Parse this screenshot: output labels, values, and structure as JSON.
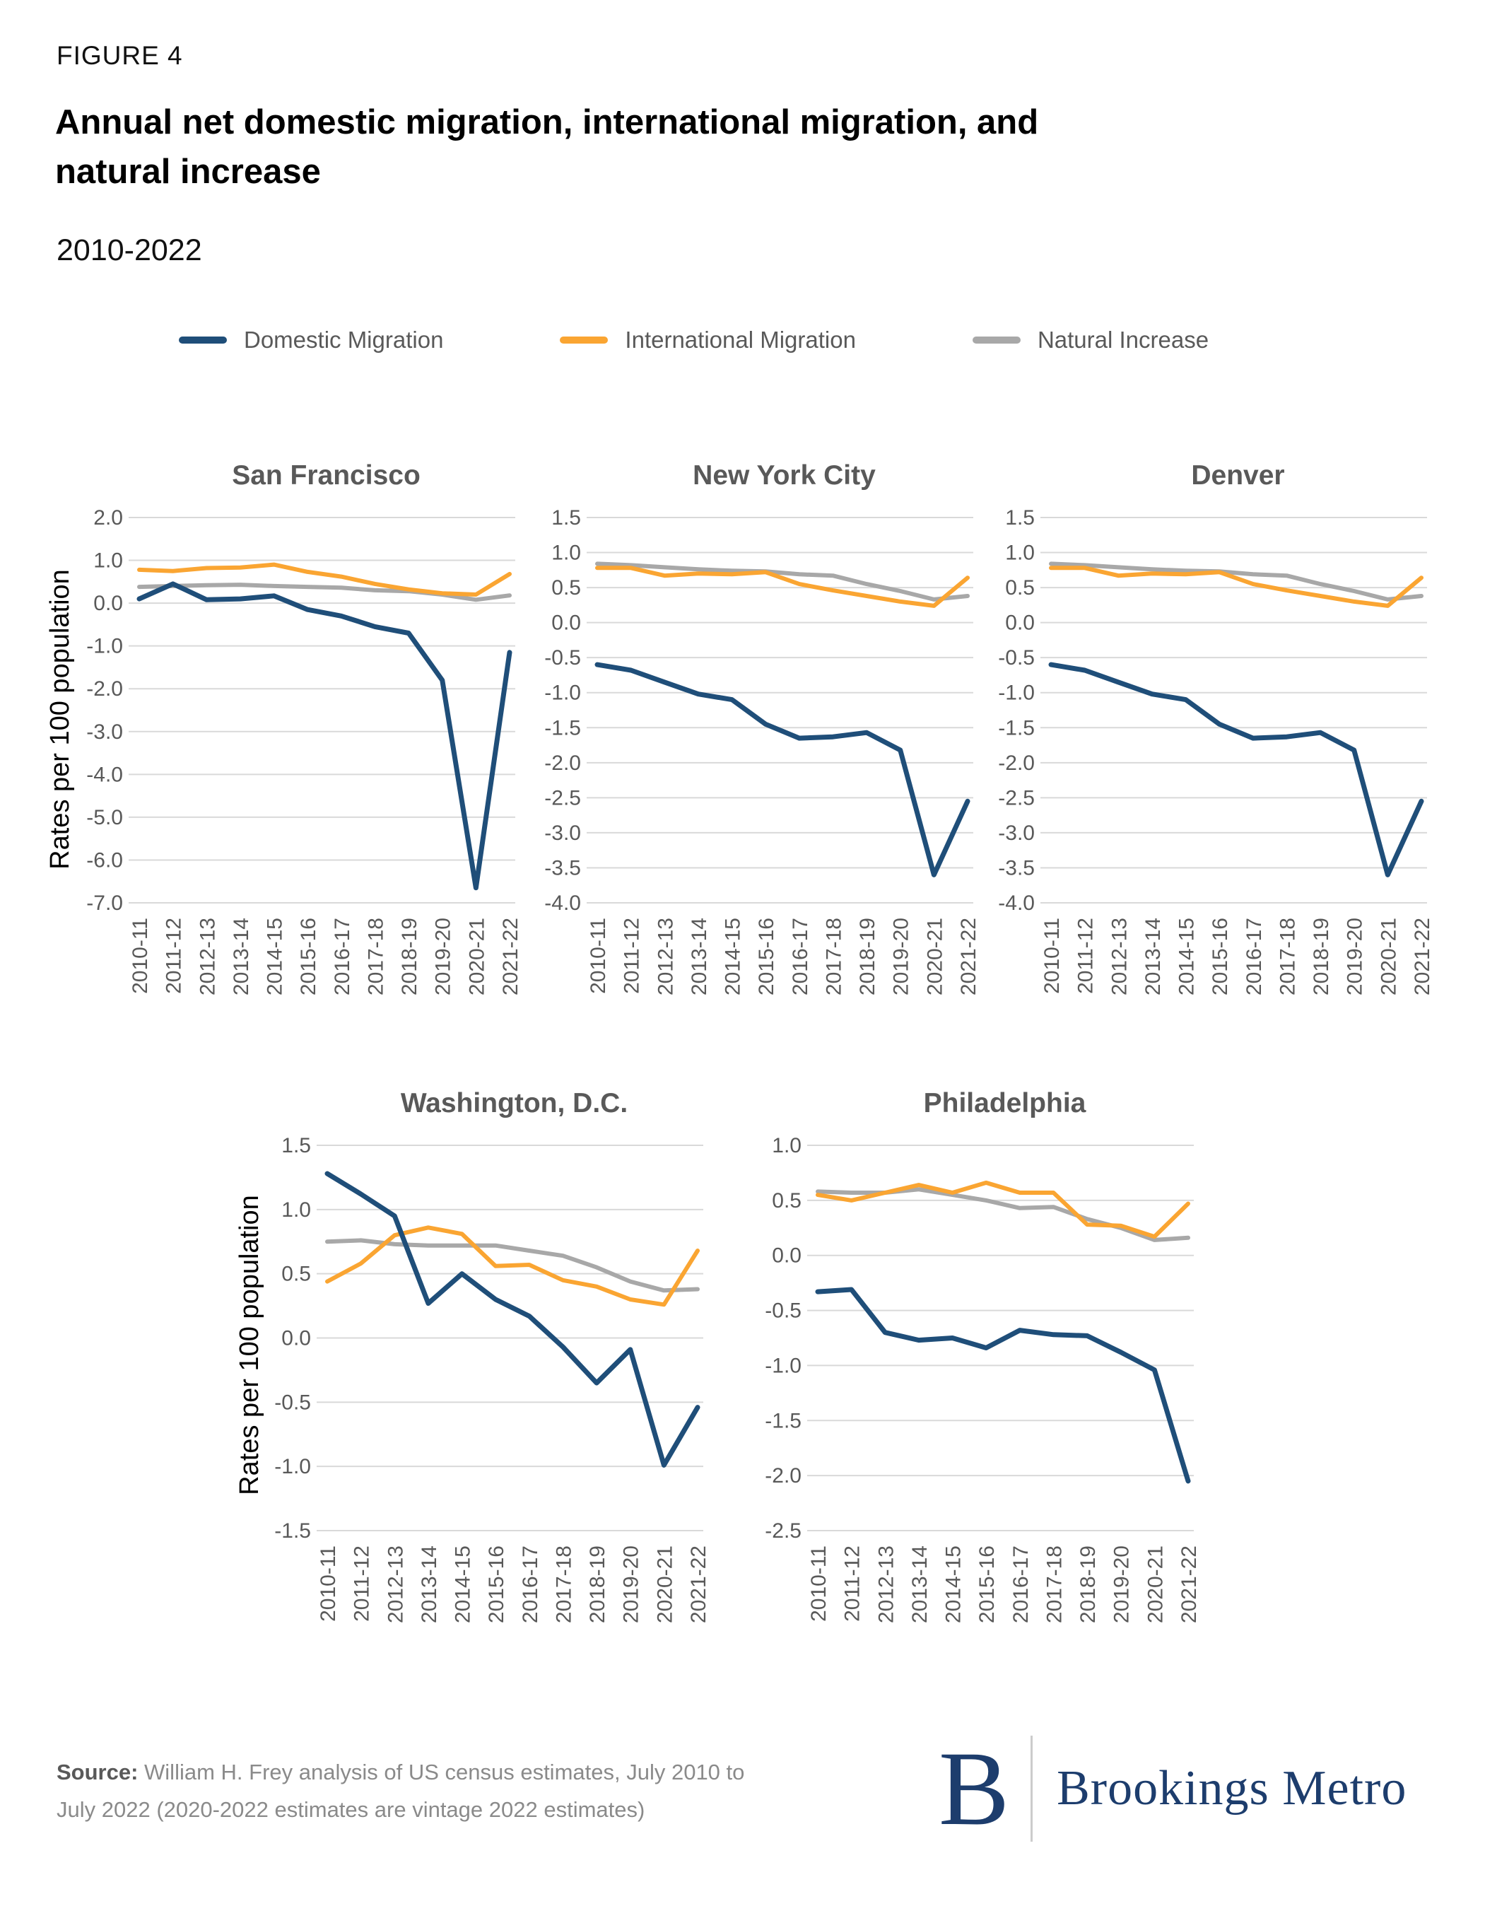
{
  "figure_label": "FIGURE 4",
  "title_lines": [
    "Annual net domestic migration, international migration, and",
    "natural increase"
  ],
  "subtitle": "2010-2022",
  "y_axis_label": "Rates per 100 population",
  "legend": [
    {
      "label": "Domestic Migration",
      "color": "#1F4E79"
    },
    {
      "label": "International Migration",
      "color": "#FAA532"
    },
    {
      "label": "Natural Increase",
      "color": "#A8A8A8"
    }
  ],
  "source": {
    "prefix": "Source:",
    "line1": " William H. Frey analysis of US census estimates, July 2010 to",
    "line2": "July 2022 (2020-2022 estimates are vintage 2022 estimates)"
  },
  "logo": {
    "letter": "B",
    "name": "Brookings Metro"
  },
  "chart_data": {
    "type": "line",
    "x": [
      "2010-11",
      "2011-12",
      "2012-13",
      "2013-14",
      "2014-15",
      "2015-16",
      "2016-17",
      "2017-18",
      "2018-19",
      "2019-20",
      "2020-21",
      "2021-22"
    ],
    "x_tick_rotation": 90,
    "grid": true,
    "legend_position": "top",
    "ylabel": "Rates per 100 population",
    "charts": [
      {
        "title": "San Francisco",
        "ylim": [
          -7.0,
          2.0
        ],
        "ytick_step": 1.0,
        "series": [
          {
            "name": "Domestic Migration",
            "values": [
              0.1,
              0.45,
              0.08,
              0.1,
              0.17,
              -0.15,
              -0.3,
              -0.55,
              -0.7,
              -1.8,
              -6.65,
              -1.15
            ]
          },
          {
            "name": "International Migration",
            "values": [
              0.78,
              0.75,
              0.82,
              0.83,
              0.9,
              0.73,
              0.62,
              0.45,
              0.32,
              0.23,
              0.2,
              0.68
            ]
          },
          {
            "name": "Natural Increase",
            "values": [
              0.38,
              0.4,
              0.42,
              0.43,
              0.4,
              0.38,
              0.36,
              0.3,
              0.28,
              0.2,
              0.08,
              0.18
            ]
          }
        ]
      },
      {
        "title": "New York City",
        "ylim": [
          -4.0,
          1.5
        ],
        "ytick_step": 0.5,
        "series": [
          {
            "name": "Domestic Migration",
            "values": [
              -0.6,
              -0.68,
              -0.85,
              -1.02,
              -1.1,
              -1.45,
              -1.65,
              -1.63,
              -1.57,
              -1.82,
              -3.6,
              -2.55
            ]
          },
          {
            "name": "International Migration",
            "values": [
              0.78,
              0.78,
              0.67,
              0.7,
              0.69,
              0.72,
              0.55,
              0.46,
              0.38,
              0.3,
              0.24,
              0.64
            ]
          },
          {
            "name": "Natural Increase",
            "values": [
              0.84,
              0.82,
              0.79,
              0.76,
              0.74,
              0.73,
              0.69,
              0.67,
              0.55,
              0.45,
              0.33,
              0.38
            ]
          }
        ]
      },
      {
        "title": "Denver",
        "ylim": [
          -4.0,
          1.5
        ],
        "ytick_step": 0.5,
        "series": [
          {
            "name": "Domestic Migration",
            "values": [
              -0.6,
              -0.68,
              -0.85,
              -1.02,
              -1.1,
              -1.45,
              -1.65,
              -1.63,
              -1.57,
              -1.82,
              -3.6,
              -2.55
            ]
          },
          {
            "name": "International Migration",
            "values": [
              0.78,
              0.78,
              0.67,
              0.7,
              0.69,
              0.72,
              0.55,
              0.46,
              0.38,
              0.3,
              0.24,
              0.64
            ]
          },
          {
            "name": "Natural Increase",
            "values": [
              0.84,
              0.82,
              0.79,
              0.76,
              0.74,
              0.73,
              0.69,
              0.67,
              0.55,
              0.45,
              0.33,
              0.38
            ]
          }
        ]
      },
      {
        "title": "Washington, D.C.",
        "ylim": [
          -1.5,
          1.5
        ],
        "ytick_step": 0.5,
        "series": [
          {
            "name": "Domestic Migration",
            "values": [
              1.28,
              1.12,
              0.95,
              0.27,
              0.5,
              0.3,
              0.17,
              -0.07,
              -0.35,
              -0.09,
              -0.99,
              -0.54
            ]
          },
          {
            "name": "International Migration",
            "values": [
              0.44,
              0.58,
              0.8,
              0.86,
              0.81,
              0.56,
              0.57,
              0.45,
              0.4,
              0.3,
              0.26,
              0.68
            ]
          },
          {
            "name": "Natural Increase",
            "values": [
              0.75,
              0.76,
              0.73,
              0.72,
              0.72,
              0.72,
              0.68,
              0.64,
              0.55,
              0.44,
              0.37,
              0.38
            ]
          }
        ]
      },
      {
        "title": "Philadelphia",
        "ylim": [
          -2.5,
          1.0
        ],
        "ytick_step": 0.5,
        "series": [
          {
            "name": "Domestic Migration",
            "values": [
              -0.33,
              -0.31,
              -0.7,
              -0.77,
              -0.75,
              -0.84,
              -0.68,
              -0.72,
              -0.73,
              -0.88,
              -1.04,
              -2.05
            ]
          },
          {
            "name": "International Migration",
            "values": [
              0.55,
              0.5,
              0.57,
              0.64,
              0.57,
              0.66,
              0.57,
              0.57,
              0.28,
              0.27,
              0.17,
              0.47
            ]
          },
          {
            "name": "Natural Increase",
            "values": [
              0.58,
              0.57,
              0.57,
              0.6,
              0.55,
              0.5,
              0.43,
              0.44,
              0.33,
              0.25,
              0.14,
              0.16
            ]
          }
        ]
      }
    ]
  }
}
